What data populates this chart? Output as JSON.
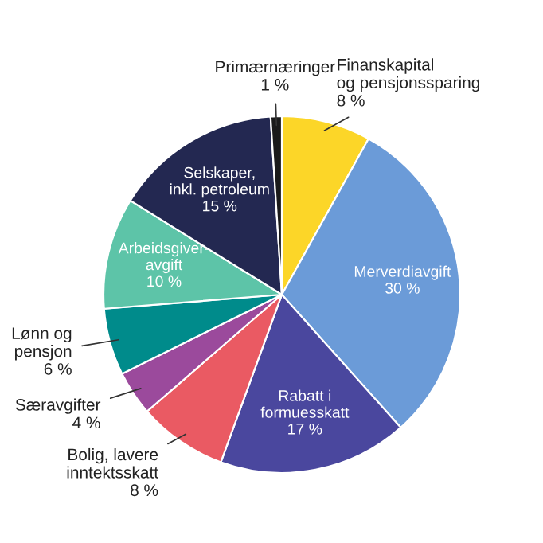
{
  "chart_data": {
    "type": "pie",
    "categories": [
      "Finanskapital\nog pensjonssparing",
      "Merverdiavgift",
      "Rabatt i\nformuesskatt",
      "Bolig, lavere\ninntektsskatt",
      "Særavgifter",
      "Lønn og\npensjon",
      "Arbeidsgiver-\navgift",
      "Selskaper,\ninkl. petroleum",
      "Primærnæringer"
    ],
    "values": [
      8,
      30,
      17,
      8,
      4,
      6,
      10,
      15,
      1
    ],
    "value_labels": [
      "8 %",
      "30 %",
      "17 %",
      "8 %",
      "4 %",
      "6 %",
      "10 %",
      "15 %",
      "1 %"
    ],
    "colors": [
      "#fcd628",
      "#6b9bd8",
      "#4a479e",
      "#ea5a63",
      "#9b4a9c",
      "#008b8b",
      "#5dc4a8",
      "#232851",
      "#1a1a1a"
    ]
  }
}
